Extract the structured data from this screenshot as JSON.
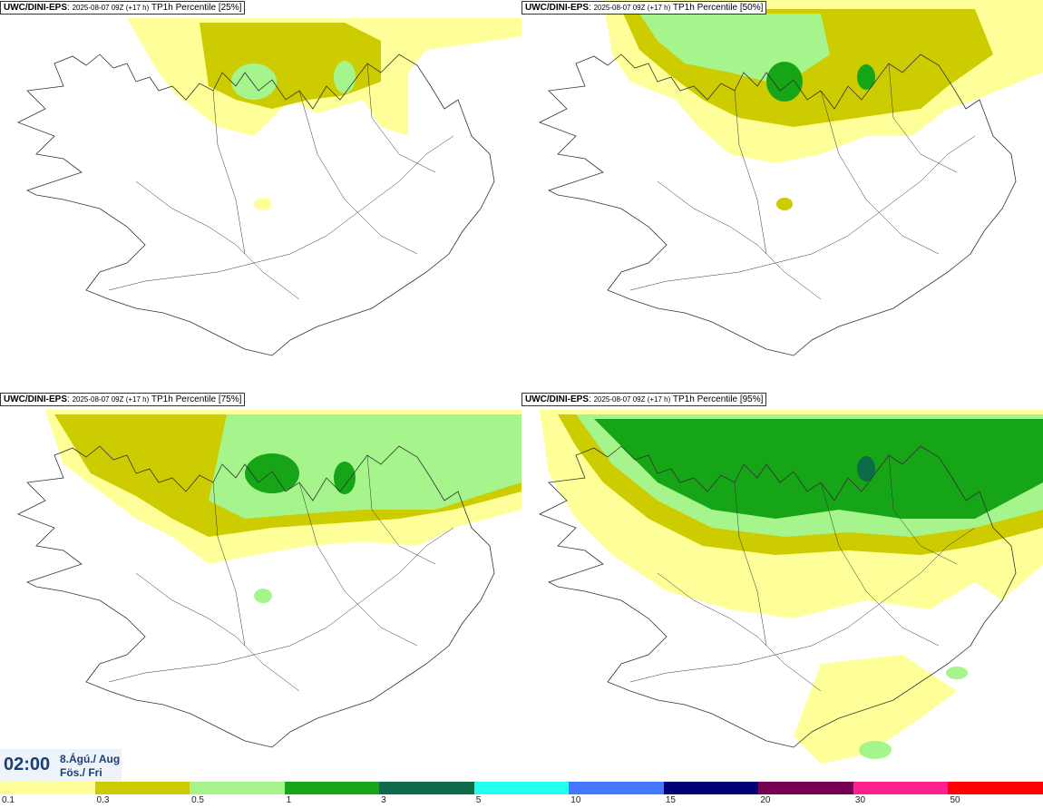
{
  "panels": [
    {
      "model": "UWC/DINI-EPS",
      "run": "2025-08-07 09Z (+17 h)",
      "field": "TP1h Percentile [25%]"
    },
    {
      "model": "UWC/DINI-EPS",
      "run": "2025-08-07 09Z (+17 h)",
      "field": "TP1h Percentile [50%]"
    },
    {
      "model": "UWC/DINI-EPS",
      "run": "2025-08-07 09Z (+17 h)",
      "field": "TP1h Percentile [75%]"
    },
    {
      "model": "UWC/DINI-EPS",
      "run": "2025-08-07 09Z (+17 h)",
      "field": "TP1h Percentile [95%]"
    }
  ],
  "valid_time": {
    "time": "02:00",
    "date_line1": "8.Ágú./ Aug",
    "date_line2": "Fös./ Fri"
  },
  "legend": {
    "colors": [
      "#ffff99",
      "#cccc00",
      "#a6f58c",
      "#16a516",
      "#0d6b4a",
      "#22ffee",
      "#4477ff",
      "#000077",
      "#770055",
      "#ff1f8f",
      "#ff0000"
    ],
    "labels": [
      "0.1",
      "0.3",
      "0.5",
      "1",
      "3",
      "5",
      "10",
      "15",
      "20",
      "30",
      "50"
    ]
  }
}
